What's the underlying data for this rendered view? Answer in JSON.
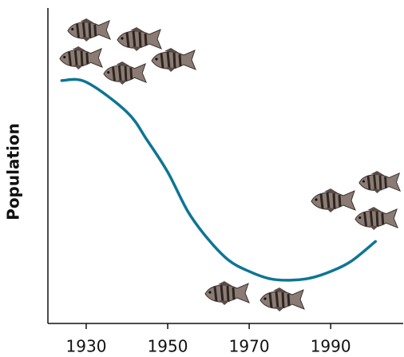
{
  "chart_data": {
    "type": "line",
    "y_label": "Population",
    "x": [
      1924,
      1930,
      1940,
      1945,
      1950,
      1955,
      1960,
      1965,
      1970,
      1975,
      1980,
      1985,
      1990,
      1995,
      2001
    ],
    "series": [
      {
        "color": "#0e7594",
        "values": [
          77,
          76.5,
          67,
          58,
          48,
          35.4,
          26.6,
          20,
          16.5,
          14.2,
          13.7,
          14.4,
          16.5,
          19.7,
          26
        ]
      }
    ],
    "xlim": [
      1920.6,
      2007.8
    ],
    "xticks": [
      1930,
      1950,
      1970,
      1990
    ],
    "ylim": [
      0,
      100
    ]
  }
}
